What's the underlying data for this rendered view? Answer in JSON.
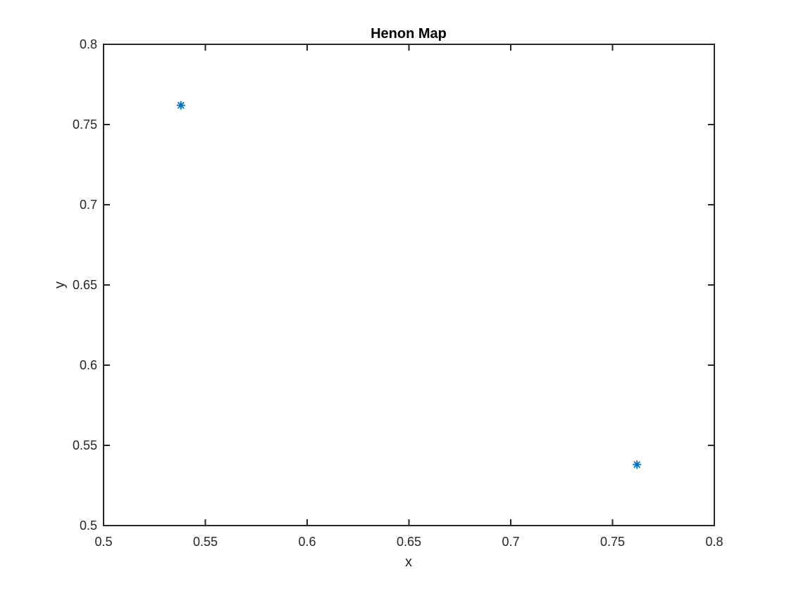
{
  "chart_data": {
    "type": "scatter",
    "title": "Henon Map",
    "xlabel": "x",
    "ylabel": "y",
    "xlim": [
      0.5,
      0.8
    ],
    "ylim": [
      0.5,
      0.8
    ],
    "x_ticks": [
      0.5,
      0.55,
      0.6,
      0.65,
      0.7,
      0.75,
      0.8
    ],
    "y_ticks": [
      0.5,
      0.55,
      0.6,
      0.65,
      0.7,
      0.75,
      0.8
    ],
    "x_tick_labels": [
      "0.5",
      "0.55",
      "0.6",
      "0.65",
      "0.7",
      "0.75",
      "0.8"
    ],
    "y_tick_labels": [
      "0.5",
      "0.55",
      "0.6",
      "0.65",
      "0.7",
      "0.75",
      "0.8"
    ],
    "grid": false,
    "marker": "asterisk",
    "series": [
      {
        "color": "#0072BD",
        "x": [
          0.538,
          0.762
        ],
        "y": [
          0.762,
          0.538
        ]
      }
    ]
  }
}
